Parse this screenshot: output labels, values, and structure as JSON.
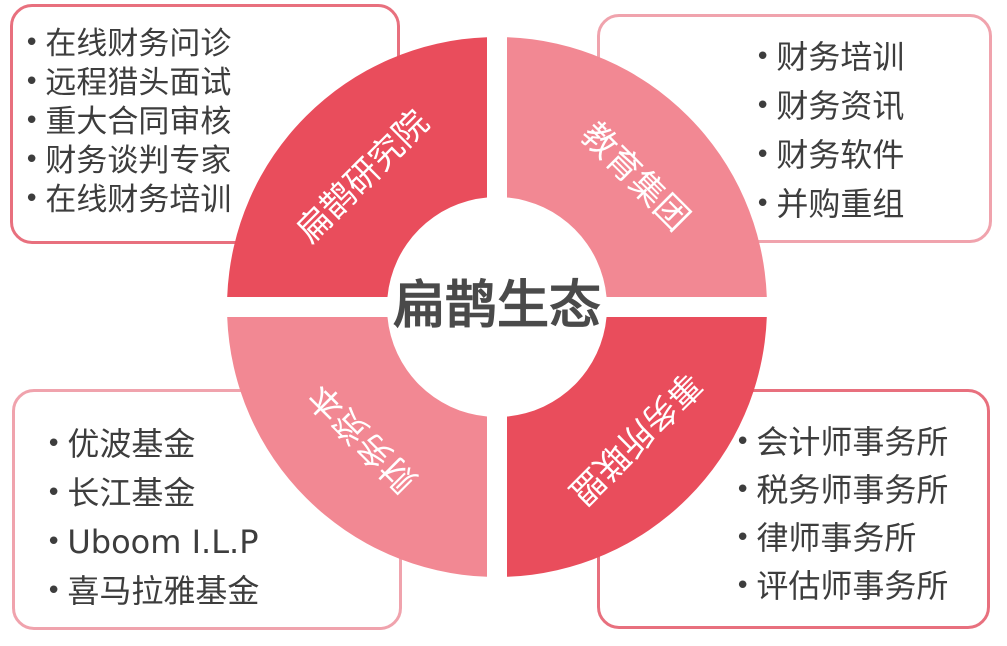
{
  "center": {
    "label": "扁鹊生态"
  },
  "segments": [
    {
      "id": "top-left",
      "label": "扁鹊研究院",
      "color": "#e94d5c"
    },
    {
      "id": "top-right",
      "label": "教育集团",
      "color": "#f28893"
    },
    {
      "id": "bottom-right",
      "label": "事务所联盟",
      "color": "#e94d5c"
    },
    {
      "id": "bottom-left",
      "label": "财务资本",
      "color": "#f28893"
    }
  ],
  "panels": {
    "top_left": {
      "items": [
        "在线财务问诊",
        "远程猎头面试",
        "重大合同审核",
        "财务谈判专家",
        "在线财务培训"
      ]
    },
    "top_right": {
      "items": [
        "财务培训",
        "财务资讯",
        "财务软件",
        "并购重组"
      ]
    },
    "bottom_left": {
      "items": [
        "优波基金",
        "长江基金",
        "Uboom I.L.P",
        "喜马拉雅基金"
      ]
    },
    "bottom_right": {
      "items": [
        "会计师事务所",
        "税务师事务所",
        "律师事务所",
        "评估师事务所"
      ]
    }
  }
}
